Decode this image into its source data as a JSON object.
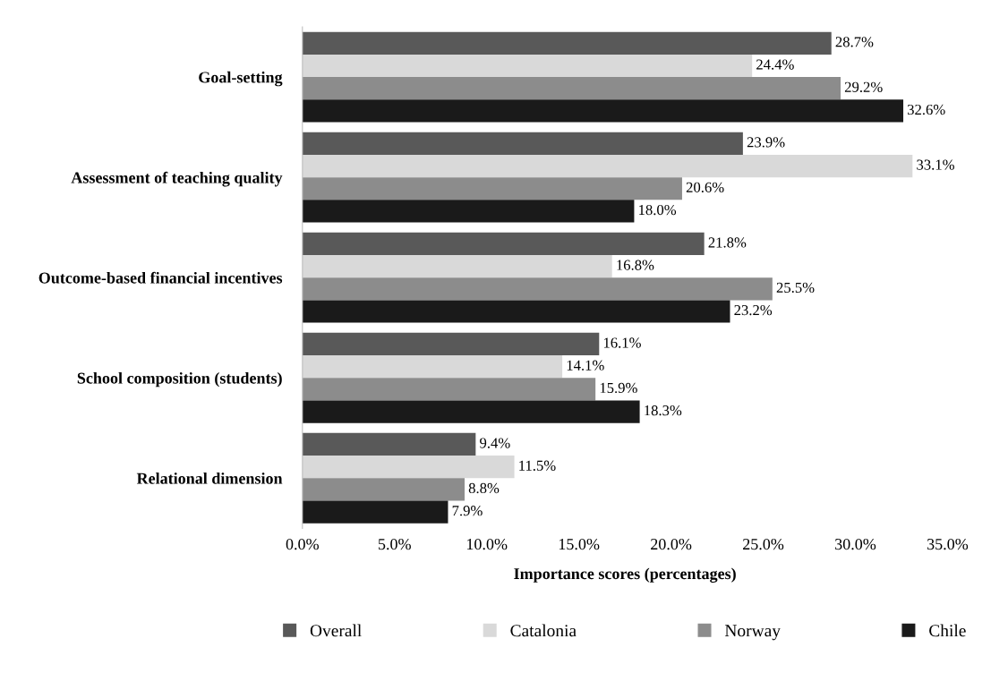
{
  "chart_data": {
    "type": "bar",
    "orientation": "horizontal",
    "xlabel": "Importance scores (percentages)",
    "categories": [
      "Goal-setting",
      "Assessment of teaching quality",
      "Outcome-based financial incentives",
      "School composition (students)",
      "Relational dimension"
    ],
    "series": [
      {
        "name": "Overall",
        "color": "#595959",
        "values": [
          28.7,
          23.9,
          21.8,
          16.1,
          9.4
        ],
        "value_labels": [
          "28.7%",
          "23.9%",
          "21.8%",
          "16.1%",
          "9.4%"
        ]
      },
      {
        "name": "Catalonia",
        "color": "#d9d9d9",
        "values": [
          24.4,
          33.1,
          16.8,
          14.1,
          11.5
        ],
        "value_labels": [
          "24.4%",
          "33.1%",
          "16.8%",
          "14.1%",
          "11.5%"
        ]
      },
      {
        "name": "Norway",
        "color": "#8c8c8c",
        "values": [
          29.2,
          20.6,
          25.5,
          15.9,
          8.8
        ],
        "value_labels": [
          "29.2%",
          "20.6%",
          "25.5%",
          "15.9%",
          "8.8%"
        ]
      },
      {
        "name": "Chile",
        "color": "#1a1a1a",
        "values": [
          32.6,
          18.0,
          23.2,
          18.3,
          7.9
        ],
        "value_labels": [
          "32.6%",
          "18.0%",
          "23.2%",
          "18.3%",
          "7.9%"
        ]
      }
    ],
    "xlim": [
      0,
      35
    ],
    "xticks": [
      {
        "value": 0,
        "label": "0.0%"
      },
      {
        "value": 5,
        "label": "5.0%"
      },
      {
        "value": 10,
        "label": "10.0%"
      },
      {
        "value": 15,
        "label": "15.0%"
      },
      {
        "value": 20,
        "label": "20.0%"
      },
      {
        "value": 25,
        "label": "25.0%"
      },
      {
        "value": 30,
        "label": "30.0%"
      },
      {
        "value": 35,
        "label": "35.0%"
      }
    ],
    "grid": false,
    "legend": "bottom"
  }
}
